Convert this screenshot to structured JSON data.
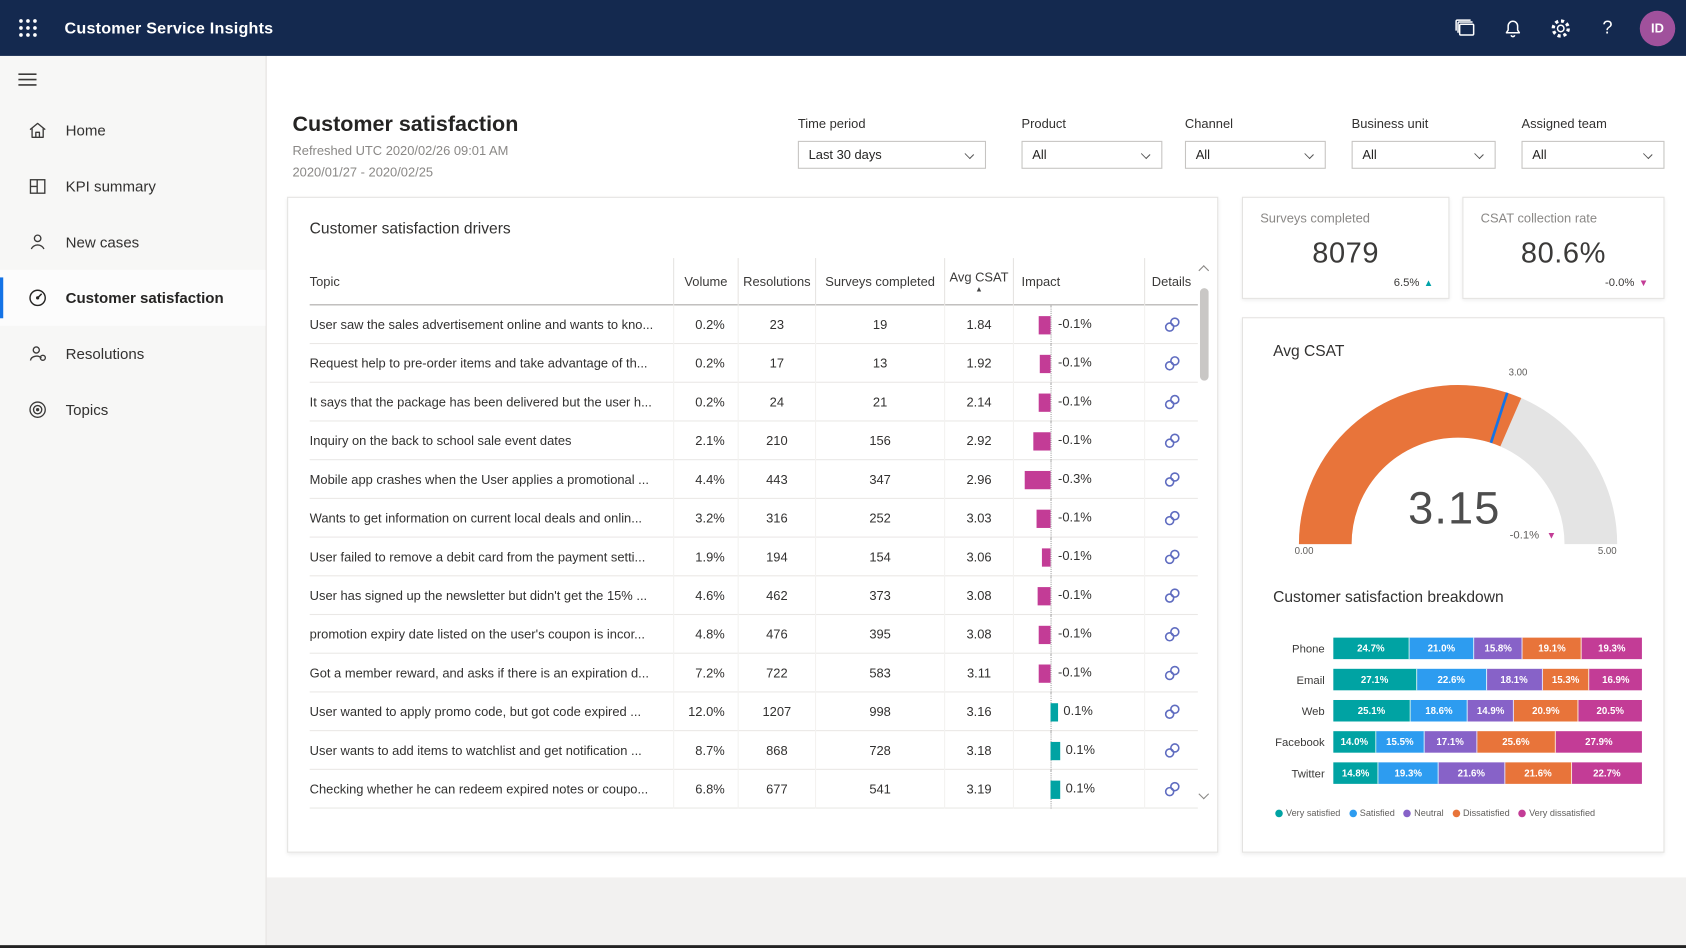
{
  "topbar": {
    "title": "Customer Service Insights",
    "avatar": "ID"
  },
  "sidebar": {
    "items": [
      {
        "label": "Home",
        "icon": "home",
        "selected": false
      },
      {
        "label": "KPI summary",
        "icon": "kpi",
        "selected": false
      },
      {
        "label": "New cases",
        "icon": "person",
        "selected": false
      },
      {
        "label": "Customer satisfaction",
        "icon": "gauge",
        "selected": true
      },
      {
        "label": "Resolutions",
        "icon": "person-badge",
        "selected": false
      },
      {
        "label": "Topics",
        "icon": "target",
        "selected": false
      }
    ]
  },
  "header": {
    "title": "Customer satisfaction",
    "refreshed": "Refreshed UTC 2020/02/26 09:01 AM",
    "date_range": "2020/01/27 - 2020/02/25"
  },
  "filters": [
    {
      "label": "Time period",
      "value": "Last 30 days"
    },
    {
      "label": "Product",
      "value": "All"
    },
    {
      "label": "Channel",
      "value": "All"
    },
    {
      "label": "Business unit",
      "value": "All"
    },
    {
      "label": "Assigned team",
      "value": "All"
    }
  ],
  "drivers": {
    "title": "Customer satisfaction drivers",
    "columns": [
      "Topic",
      "Volume",
      "Resolutions",
      "Surveys completed",
      "Avg CSAT",
      "Impact",
      "Details"
    ],
    "sorted_by": "Avg CSAT",
    "sort_direction": "ascending",
    "rows": [
      {
        "topic": "User saw the sales advertisement online and wants to kno...",
        "volume": "0.2%",
        "resolutions": "23",
        "surveys": "19",
        "csat": "1.84",
        "impact": "-0.1%",
        "bar": 11,
        "positive": false
      },
      {
        "topic": "Request help to pre-order items and take advantage of th...",
        "volume": "0.2%",
        "resolutions": "17",
        "surveys": "13",
        "csat": "1.92",
        "impact": "-0.1%",
        "bar": 10,
        "positive": false
      },
      {
        "topic": "It says that the package has been delivered but the user h...",
        "volume": "0.2%",
        "resolutions": "24",
        "surveys": "21",
        "csat": "2.14",
        "impact": "-0.1%",
        "bar": 11,
        "positive": false
      },
      {
        "topic": "Inquiry on the back to school sale event dates",
        "volume": "2.1%",
        "resolutions": "210",
        "surveys": "156",
        "csat": "2.92",
        "impact": "-0.1%",
        "bar": 16,
        "positive": false
      },
      {
        "topic": "Mobile app crashes when the User applies a promotional ...",
        "volume": "4.4%",
        "resolutions": "443",
        "surveys": "347",
        "csat": "2.96",
        "impact": "-0.3%",
        "bar": 24,
        "positive": false
      },
      {
        "topic": "Wants to get information on current local deals and onlin...",
        "volume": "3.2%",
        "resolutions": "316",
        "surveys": "252",
        "csat": "3.03",
        "impact": "-0.1%",
        "bar": 13,
        "positive": false
      },
      {
        "topic": "User failed to remove a debit card from the payment setti...",
        "volume": "1.9%",
        "resolutions": "194",
        "surveys": "154",
        "csat": "3.06",
        "impact": "-0.1%",
        "bar": 8,
        "positive": false
      },
      {
        "topic": "User has signed up the newsletter but didn't get the 15% ...",
        "volume": "4.6%",
        "resolutions": "462",
        "surveys": "373",
        "csat": "3.08",
        "impact": "-0.1%",
        "bar": 12,
        "positive": false
      },
      {
        "topic": "promotion expiry date listed on the user's coupon is incor...",
        "volume": "4.8%",
        "resolutions": "476",
        "surveys": "395",
        "csat": "3.08",
        "impact": "-0.1%",
        "bar": 11,
        "positive": false
      },
      {
        "topic": "Got a member reward, and asks if there is an expiration d...",
        "volume": "7.2%",
        "resolutions": "722",
        "surveys": "583",
        "csat": "3.11",
        "impact": "-0.1%",
        "bar": 11,
        "positive": false
      },
      {
        "topic": "User wanted to apply promo code, but got code expired ...",
        "volume": "12.0%",
        "resolutions": "1207",
        "surveys": "998",
        "csat": "3.16",
        "impact": "0.1%",
        "bar": 7,
        "positive": true
      },
      {
        "topic": "User wants to add items to watchlist and get notification ...",
        "volume": "8.7%",
        "resolutions": "868",
        "surveys": "728",
        "csat": "3.18",
        "impact": "0.1%",
        "bar": 9,
        "positive": true
      },
      {
        "topic": "Checking whether he can redeem expired notes or coupo...",
        "volume": "6.8%",
        "resolutions": "677",
        "surveys": "541",
        "csat": "3.19",
        "impact": "0.1%",
        "bar": 9,
        "positive": true
      }
    ]
  },
  "kpis": [
    {
      "label": "Surveys completed",
      "value": "8079",
      "delta": "6.5%",
      "trend": "up"
    },
    {
      "label": "CSAT collection rate",
      "value": "80.6%",
      "delta": "-0.0%",
      "trend": "down"
    }
  ],
  "gauge": {
    "title": "Avg CSAT",
    "value": "3.15",
    "value_num": 3.15,
    "delta": "-0.1%",
    "trend": "down",
    "min_label": "0.00",
    "max_label": "5.00",
    "target_label": "3.00",
    "target_num": 3.0,
    "max_num": 5.0
  },
  "breakdown": {
    "title": "Customer satisfaction breakdown",
    "categories": [
      "Phone",
      "Email",
      "Web",
      "Facebook",
      "Twitter"
    ],
    "series": [
      {
        "name": "Very satisfied",
        "color": "#00A3A3",
        "values": [
          24.7,
          27.1,
          25.1,
          14.0,
          14.8
        ]
      },
      {
        "name": "Satisfied",
        "color": "#2D9CF0",
        "values": [
          21.0,
          22.6,
          18.6,
          15.5,
          19.3
        ]
      },
      {
        "name": "Neutral",
        "color": "#8762C8",
        "values": [
          15.8,
          18.1,
          14.9,
          17.1,
          21.6
        ]
      },
      {
        "name": "Dissatisfied",
        "color": "#E8743A",
        "values": [
          19.1,
          15.3,
          20.9,
          25.6,
          21.6
        ]
      },
      {
        "name": "Very dissatisfied",
        "color": "#C33C96",
        "values": [
          19.3,
          16.9,
          20.5,
          27.9,
          22.7
        ]
      }
    ]
  },
  "colors": {
    "positive": "#00A3A3",
    "negative": "#C33C96",
    "accent": "#1473E6",
    "gauge_fill": "#E8743A",
    "gauge_rest": "#E4E4E4"
  }
}
